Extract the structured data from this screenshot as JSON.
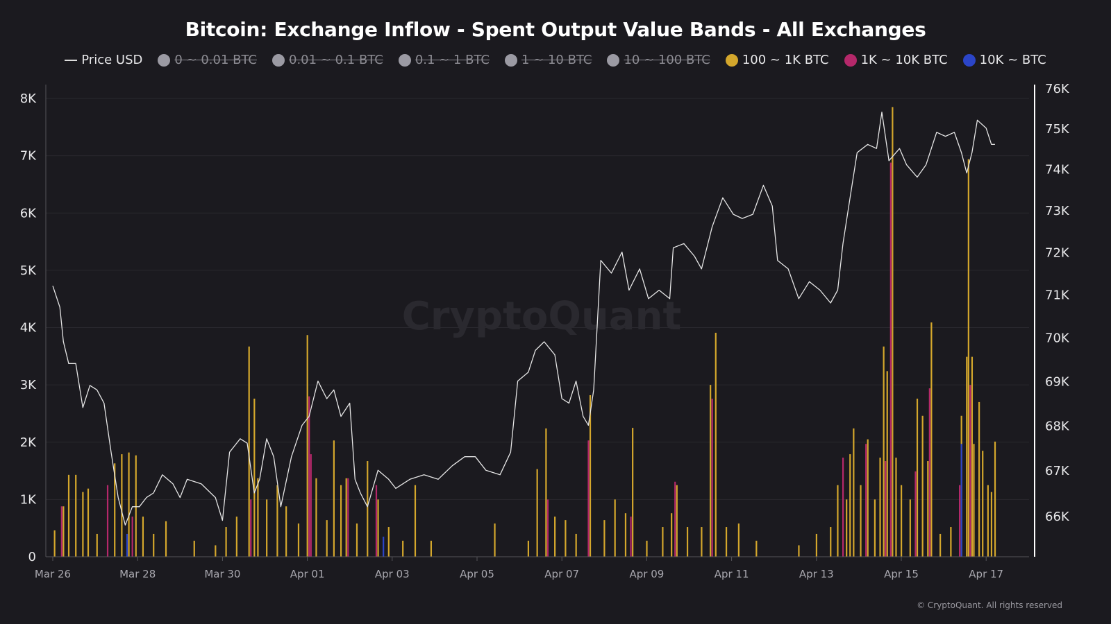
{
  "title": "Bitcoin: Exchange Inflow - Spent Output Value Bands - All Exchanges",
  "copyright": "© CryptoQuant. All rights reserved",
  "watermark": "CryptoQuant",
  "legend": [
    {
      "label": "Price USD",
      "kind": "line",
      "color": "#dddddd",
      "hidden": false
    },
    {
      "label": "0 ~ 0.01 BTC",
      "kind": "dot",
      "color": "#9b9aa3",
      "hidden": true
    },
    {
      "label": "0.01 ~ 0.1 BTC",
      "kind": "dot",
      "color": "#9b9aa3",
      "hidden": true
    },
    {
      "label": "0.1 ~ 1 BTC",
      "kind": "dot",
      "color": "#9b9aa3",
      "hidden": true
    },
    {
      "label": "1 ~ 10 BTC",
      "kind": "dot",
      "color": "#9b9aa3",
      "hidden": true
    },
    {
      "label": "10 ~ 100 BTC",
      "kind": "dot",
      "color": "#9b9aa3",
      "hidden": true
    },
    {
      "label": "100 ~ 1K BTC",
      "kind": "dot",
      "color": "#d4a72c",
      "hidden": false
    },
    {
      "label": "1K ~ 10K BTC",
      "kind": "dot",
      "color": "#b5286a",
      "hidden": false
    },
    {
      "label": "10K ~ BTC",
      "kind": "dot",
      "color": "#2b45c8",
      "hidden": false
    }
  ],
  "chart_data": {
    "type": "bar",
    "left_axis": {
      "ylim": [
        0,
        8000
      ],
      "ticks": [
        "0",
        "1K",
        "2K",
        "3K",
        "4K",
        "5K",
        "6K",
        "7K",
        "8K"
      ],
      "tick_values": [
        0,
        1000,
        2000,
        3000,
        4000,
        5000,
        6000,
        7000,
        8000
      ]
    },
    "right_axis": {
      "scale": "log",
      "ylim": [
        65000,
        76000
      ],
      "ticks": [
        "66K",
        "67K",
        "68K",
        "69K",
        "70K",
        "71K",
        "72K",
        "73K",
        "74K",
        "75K",
        "76K"
      ],
      "tick_values": [
        66000,
        67000,
        68000,
        69000,
        70000,
        71000,
        72000,
        73000,
        74000,
        75000,
        76000
      ]
    },
    "x_ticks": [
      "Mar 26",
      "Mar 28",
      "Mar 30",
      "Apr 01",
      "Apr 03",
      "Apr 05",
      "Apr 07",
      "Apr 09",
      "Apr 11",
      "Apr 13",
      "Apr 15",
      "Apr 17"
    ],
    "grid": true,
    "legend_position": "top",
    "price_series": {
      "name": "Price USD",
      "axis": "right",
      "type": "line",
      "color": "#e6e6e6",
      "points": [
        [
          "Mar 26 00:00",
          71200
        ],
        [
          "Mar 26 04:00",
          70700
        ],
        [
          "Mar 26 06:00",
          69900
        ],
        [
          "Mar 26 09:00",
          69400
        ],
        [
          "Mar 26 13:00",
          69400
        ],
        [
          "Mar 26 17:00",
          68400
        ],
        [
          "Mar 26 21:00",
          68900
        ],
        [
          "Mar 27 01:00",
          68800
        ],
        [
          "Mar 27 05:00",
          68500
        ],
        [
          "Mar 27 09:00",
          67400
        ],
        [
          "Mar 27 13:00",
          66400
        ],
        [
          "Mar 27 17:00",
          65800
        ],
        [
          "Mar 27 21:00",
          66200
        ],
        [
          "Mar 28 01:00",
          66200
        ],
        [
          "Mar 28 05:00",
          66400
        ],
        [
          "Mar 28 09:00",
          66500
        ],
        [
          "Mar 28 14:00",
          66900
        ],
        [
          "Mar 28 20:00",
          66700
        ],
        [
          "Mar 29 00:00",
          66400
        ],
        [
          "Mar 29 04:00",
          66800
        ],
        [
          "Mar 29 12:00",
          66700
        ],
        [
          "Mar 29 20:00",
          66400
        ],
        [
          "Mar 30 00:00",
          65900
        ],
        [
          "Mar 30 04:00",
          67400
        ],
        [
          "Mar 30 10:00",
          67700
        ],
        [
          "Mar 30 14:00",
          67600
        ],
        [
          "Mar 30 18:00",
          66500
        ],
        [
          "Mar 30 21:00",
          66800
        ],
        [
          "Mar 31 01:00",
          67700
        ],
        [
          "Mar 31 05:00",
          67300
        ],
        [
          "Mar 31 09:00",
          66200
        ],
        [
          "Mar 31 15:00",
          67300
        ],
        [
          "Mar 31 21:00",
          68000
        ],
        [
          "Apr 01 01:00",
          68200
        ],
        [
          "Apr 01 06:00",
          69000
        ],
        [
          "Apr 01 11:00",
          68600
        ],
        [
          "Apr 01 15:00",
          68800
        ],
        [
          "Apr 01 19:00",
          68200
        ],
        [
          "Apr 02 00:00",
          68500
        ],
        [
          "Apr 02 03:00",
          66800
        ],
        [
          "Apr 02 06:00",
          66500
        ],
        [
          "Apr 02 10:00",
          66200
        ],
        [
          "Apr 02 16:00",
          67000
        ],
        [
          "Apr 02 22:00",
          66800
        ],
        [
          "Apr 03 02:00",
          66600
        ],
        [
          "Apr 03 10:00",
          66800
        ],
        [
          "Apr 03 18:00",
          66900
        ],
        [
          "Apr 04 02:00",
          66800
        ],
        [
          "Apr 04 10:00",
          67100
        ],
        [
          "Apr 04 17:00",
          67300
        ],
        [
          "Apr 04 23:00",
          67300
        ],
        [
          "Apr 05 05:00",
          67000
        ],
        [
          "Apr 05 13:00",
          66900
        ],
        [
          "Apr 05 19:00",
          67400
        ],
        [
          "Apr 05 23:00",
          69000
        ],
        [
          "Apr 06 05:00",
          69200
        ],
        [
          "Apr 06 09:00",
          69700
        ],
        [
          "Apr 06 14:00",
          69900
        ],
        [
          "Apr 06 20:00",
          69600
        ],
        [
          "Apr 07 00:00",
          68600
        ],
        [
          "Apr 07 04:00",
          68500
        ],
        [
          "Apr 07 08:00",
          69000
        ],
        [
          "Apr 07 12:00",
          68200
        ],
        [
          "Apr 07 15:00",
          68000
        ],
        [
          "Apr 07 18:00",
          68800
        ],
        [
          "Apr 07 22:00",
          71800
        ],
        [
          "Apr 08 04:00",
          71500
        ],
        [
          "Apr 08 10:00",
          72000
        ],
        [
          "Apr 08 14:00",
          71100
        ],
        [
          "Apr 08 20:00",
          71600
        ],
        [
          "Apr 09 01:00",
          70900
        ],
        [
          "Apr 09 07:00",
          71100
        ],
        [
          "Apr 09 13:00",
          70900
        ],
        [
          "Apr 09 15:00",
          72100
        ],
        [
          "Apr 09 21:00",
          72200
        ],
        [
          "Apr 10 03:00",
          71900
        ],
        [
          "Apr 10 07:00",
          71600
        ],
        [
          "Apr 10 13:00",
          72600
        ],
        [
          "Apr 10 19:00",
          73300
        ],
        [
          "Apr 11 01:00",
          72900
        ],
        [
          "Apr 11 06:00",
          72800
        ],
        [
          "Apr 11 12:00",
          72900
        ],
        [
          "Apr 11 18:00",
          73600
        ],
        [
          "Apr 11 23:00",
          73100
        ],
        [
          "Apr 12 02:00",
          71800
        ],
        [
          "Apr 12 08:00",
          71600
        ],
        [
          "Apr 12 14:00",
          70900
        ],
        [
          "Apr 12 20:00",
          71300
        ],
        [
          "Apr 13 02:00",
          71100
        ],
        [
          "Apr 13 08:00",
          70800
        ],
        [
          "Apr 13 12:00",
          71100
        ],
        [
          "Apr 13 15:00",
          72200
        ],
        [
          "Apr 13 19:00",
          73300
        ],
        [
          "Apr 13 23:00",
          74400
        ],
        [
          "Apr 14 05:00",
          74600
        ],
        [
          "Apr 14 10:00",
          74500
        ],
        [
          "Apr 14 13:00",
          75400
        ],
        [
          "Apr 14 17:00",
          74200
        ],
        [
          "Apr 14 23:00",
          74500
        ],
        [
          "Apr 15 03:00",
          74100
        ],
        [
          "Apr 15 09:00",
          73800
        ],
        [
          "Apr 15 14:00",
          74100
        ],
        [
          "Apr 15 20:00",
          74900
        ],
        [
          "Apr 16 01:00",
          74800
        ],
        [
          "Apr 16 06:00",
          74900
        ],
        [
          "Apr 16 10:00",
          74400
        ],
        [
          "Apr 16 13:00",
          73900
        ],
        [
          "Apr 16 16:00",
          74400
        ],
        [
          "Apr 16 19:00",
          75200
        ],
        [
          "Apr 17 00:00",
          75000
        ],
        [
          "Apr 17 03:00",
          74600
        ],
        [
          "Apr 17 05:00",
          74600
        ]
      ]
    },
    "series": [
      {
        "name": "100 ~ 1K BTC",
        "axis": "left",
        "color": "#d4a72c",
        "points": [
          [
            "Mar 26 01:00",
            460
          ],
          [
            "Mar 26 06:00",
            880
          ],
          [
            "Mar 26 09:00",
            1430
          ],
          [
            "Mar 26 13:00",
            1430
          ],
          [
            "Mar 26 17:00",
            1130
          ],
          [
            "Mar 26 20:00",
            1190
          ],
          [
            "Mar 27 01:00",
            400
          ],
          [
            "Mar 27 11:00",
            1630
          ],
          [
            "Mar 27 15:00",
            1790
          ],
          [
            "Mar 27 19:00",
            1820
          ],
          [
            "Mar 27 23:00",
            1770
          ],
          [
            "Mar 28 03:00",
            700
          ],
          [
            "Mar 28 09:00",
            400
          ],
          [
            "Mar 28 16:00",
            620
          ],
          [
            "Mar 29 08:00",
            280
          ],
          [
            "Mar 29 20:00",
            200
          ],
          [
            "Mar 30 02:00",
            520
          ],
          [
            "Mar 30 08:00",
            700
          ],
          [
            "Mar 30 15:00",
            3670
          ],
          [
            "Mar 30 18:00",
            2760
          ],
          [
            "Mar 30 20:00",
            1370
          ],
          [
            "Mar 31 01:00",
            1000
          ],
          [
            "Mar 31 07:00",
            1250
          ],
          [
            "Mar 31 12:00",
            880
          ],
          [
            "Mar 31 19:00",
            580
          ],
          [
            "Apr 01 00:00",
            3870
          ],
          [
            "Apr 01 05:00",
            1370
          ],
          [
            "Apr 01 11:00",
            640
          ],
          [
            "Apr 01 15:00",
            2030
          ],
          [
            "Apr 01 19:00",
            1250
          ],
          [
            "Apr 01 22:00",
            1370
          ],
          [
            "Apr 02 04:00",
            580
          ],
          [
            "Apr 02 10:00",
            1670
          ],
          [
            "Apr 02 16:00",
            1000
          ],
          [
            "Apr 02 22:00",
            520
          ],
          [
            "Apr 03 06:00",
            280
          ],
          [
            "Apr 03 13:00",
            1250
          ],
          [
            "Apr 03 22:00",
            280
          ],
          [
            "Apr 05 10:00",
            580
          ],
          [
            "Apr 06 05:00",
            280
          ],
          [
            "Apr 06 10:00",
            1530
          ],
          [
            "Apr 06 15:00",
            2240
          ],
          [
            "Apr 06 20:00",
            700
          ],
          [
            "Apr 07 02:00",
            640
          ],
          [
            "Apr 07 08:00",
            400
          ],
          [
            "Apr 07 16:00",
            2820
          ],
          [
            "Apr 08 00:00",
            640
          ],
          [
            "Apr 08 06:00",
            1000
          ],
          [
            "Apr 08 12:00",
            760
          ],
          [
            "Apr 08 16:00",
            2250
          ],
          [
            "Apr 09 00:00",
            280
          ],
          [
            "Apr 09 09:00",
            520
          ],
          [
            "Apr 09 14:00",
            760
          ],
          [
            "Apr 09 17:00",
            1250
          ],
          [
            "Apr 09 23:00",
            520
          ],
          [
            "Apr 10 07:00",
            520
          ],
          [
            "Apr 10 12:00",
            3000
          ],
          [
            "Apr 10 15:00",
            3910
          ],
          [
            "Apr 10 21:00",
            520
          ],
          [
            "Apr 11 04:00",
            580
          ],
          [
            "Apr 11 14:00",
            280
          ],
          [
            "Apr 12 14:00",
            200
          ],
          [
            "Apr 13 00:00",
            400
          ],
          [
            "Apr 13 08:00",
            520
          ],
          [
            "Apr 13 12:00",
            1250
          ],
          [
            "Apr 13 17:00",
            1000
          ],
          [
            "Apr 13 19:00",
            1790
          ],
          [
            "Apr 13 21:00",
            2240
          ],
          [
            "Apr 14 01:00",
            1250
          ],
          [
            "Apr 14 05:00",
            2050
          ],
          [
            "Apr 14 09:00",
            1000
          ],
          [
            "Apr 14 12:00",
            1730
          ],
          [
            "Apr 14 14:00",
            3670
          ],
          [
            "Apr 14 16:00",
            3240
          ],
          [
            "Apr 14 19:00",
            7850
          ],
          [
            "Apr 14 21:00",
            1730
          ],
          [
            "Apr 15 00:00",
            1250
          ],
          [
            "Apr 15 05:00",
            1000
          ],
          [
            "Apr 15 09:00",
            2760
          ],
          [
            "Apr 15 12:00",
            2460
          ],
          [
            "Apr 15 15:00",
            1670
          ],
          [
            "Apr 15 17:00",
            4090
          ],
          [
            "Apr 15 22:00",
            400
          ],
          [
            "Apr 16 04:00",
            520
          ],
          [
            "Apr 16 10:00",
            2460
          ],
          [
            "Apr 16 13:00",
            3490
          ],
          [
            "Apr 16 14:00",
            6940
          ],
          [
            "Apr 16 16:00",
            3490
          ],
          [
            "Apr 16 17:00",
            1970
          ],
          [
            "Apr 16 20:00",
            2700
          ],
          [
            "Apr 16 22:00",
            1850
          ],
          [
            "Apr 17 01:00",
            1250
          ],
          [
            "Apr 17 03:00",
            1130
          ],
          [
            "Apr 17 05:00",
            2010
          ]
        ]
      },
      {
        "name": "1K ~ 10K BTC",
        "axis": "left",
        "color": "#b5286a",
        "points": [
          [
            "Mar 26 05:00",
            880
          ],
          [
            "Mar 27 07:00",
            1250
          ],
          [
            "Mar 27 21:00",
            700
          ],
          [
            "Mar 30 16:00",
            1000
          ],
          [
            "Apr 01 01:00",
            2800
          ],
          [
            "Apr 01 02:00",
            1790
          ],
          [
            "Apr 01 23:00",
            1370
          ],
          [
            "Apr 02 15:00",
            1250
          ],
          [
            "Apr 06 16:00",
            1000
          ],
          [
            "Apr 07 15:00",
            2030
          ],
          [
            "Apr 08 15:00",
            700
          ],
          [
            "Apr 09 16:00",
            1310
          ],
          [
            "Apr 10 13:00",
            2760
          ],
          [
            "Apr 13 15:00",
            1730
          ],
          [
            "Apr 14 04:00",
            1970
          ],
          [
            "Apr 14 15:00",
            1670
          ],
          [
            "Apr 14 18:00",
            6880
          ],
          [
            "Apr 15 08:00",
            1490
          ],
          [
            "Apr 15 16:00",
            2940
          ],
          [
            "Apr 16 09:00",
            1250
          ],
          [
            "Apr 16 15:00",
            3000
          ]
        ]
      },
      {
        "name": "10K ~ BTC",
        "axis": "left",
        "color": "#2b45c8",
        "points": [
          [
            "Mar 27 18:00",
            400
          ],
          [
            "Apr 02 19:00",
            350
          ],
          [
            "Apr 16 10:00",
            1970
          ]
        ]
      }
    ]
  }
}
